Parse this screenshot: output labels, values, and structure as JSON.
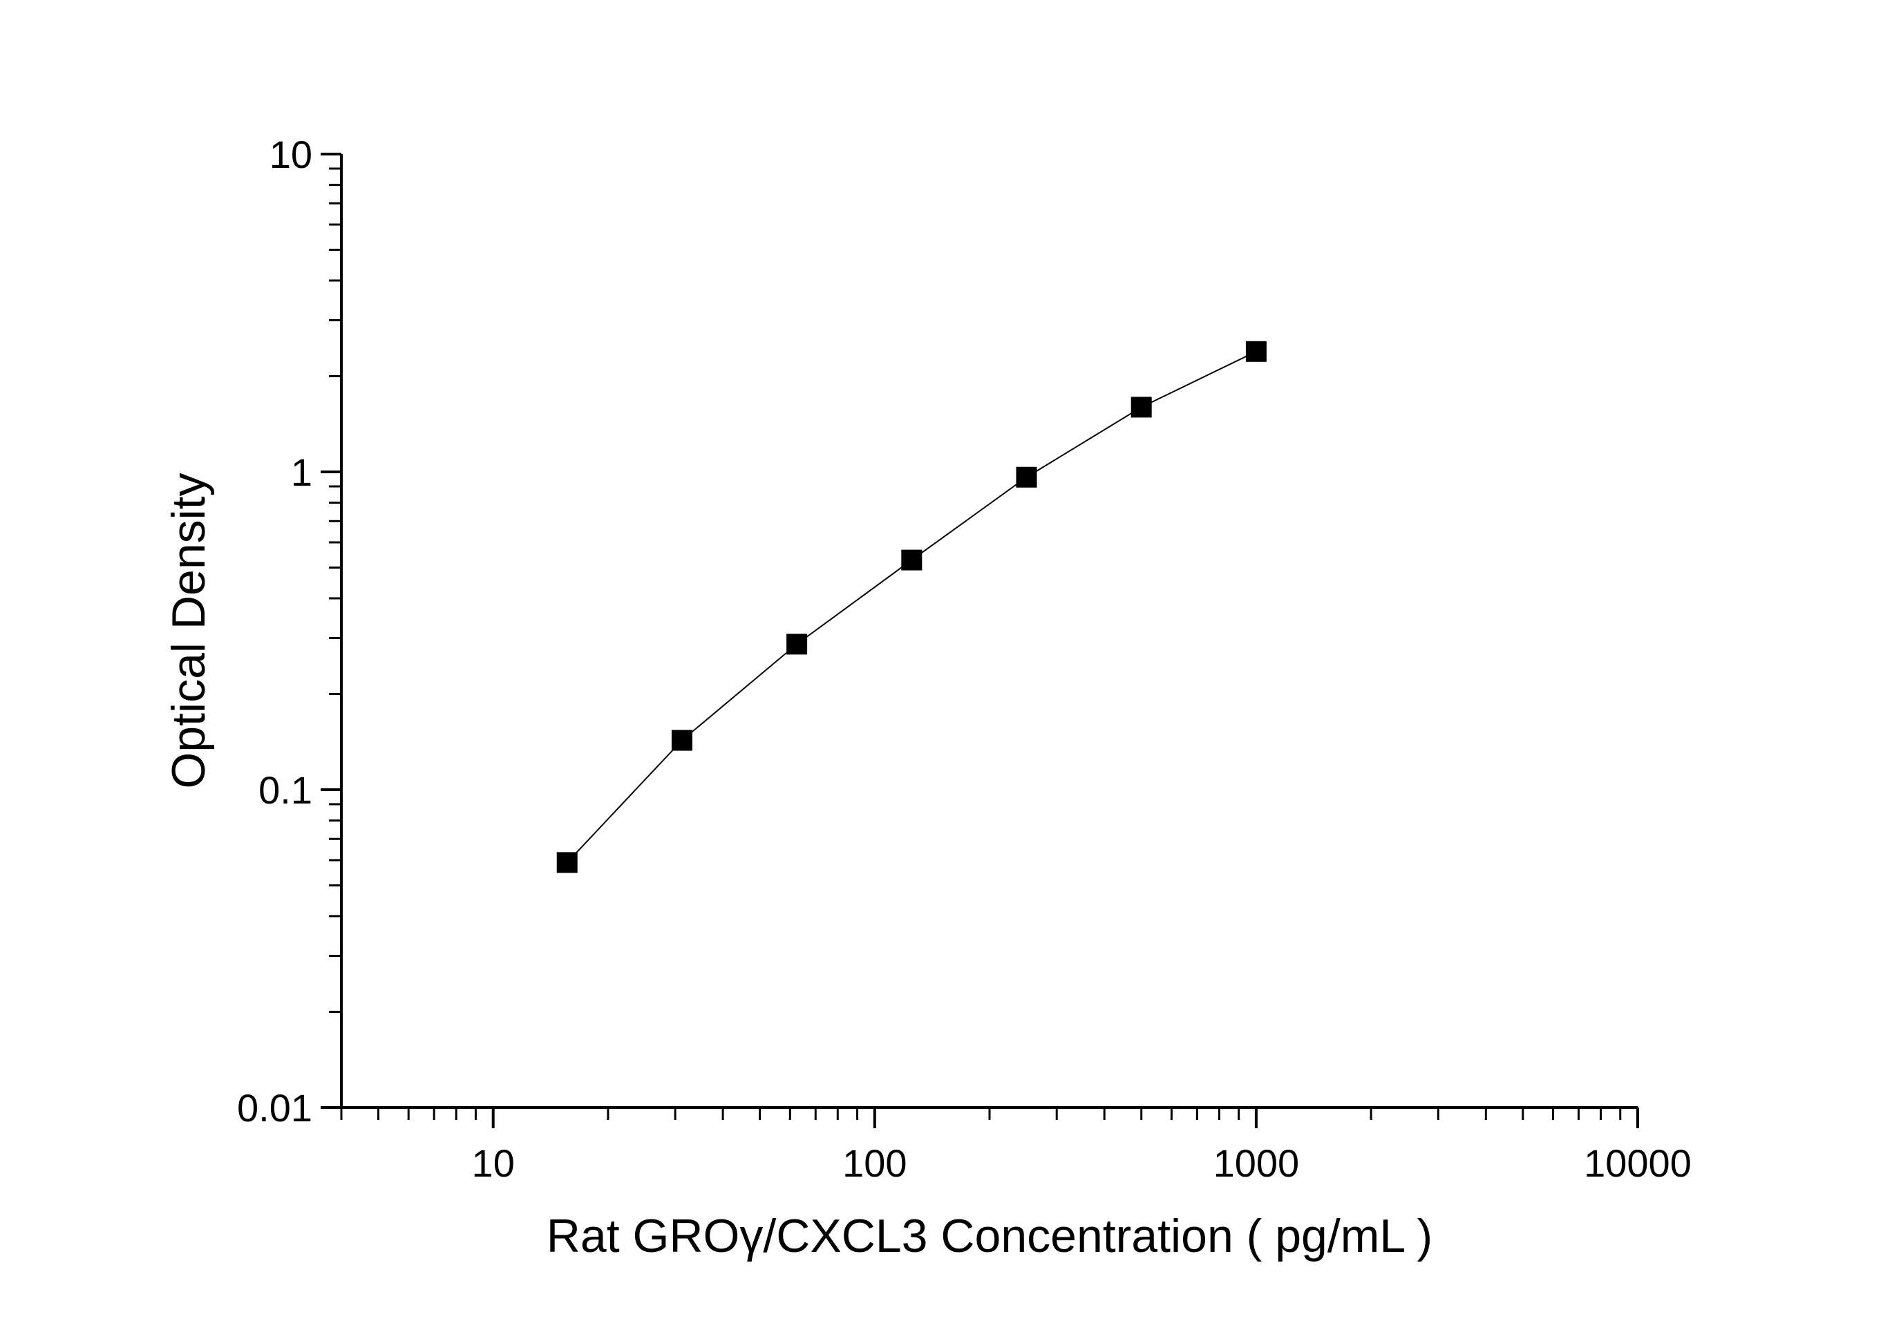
{
  "chart_data": {
    "type": "line",
    "title": "",
    "xlabel": "Rat GROγ/CXCL3 Concentration ( pg/mL )",
    "ylabel": "Optical Density",
    "xscale": "log",
    "yscale": "log",
    "xlim": [
      4,
      10000
    ],
    "ylim": [
      0.01,
      10
    ],
    "x_ticks": [
      10,
      100,
      1000,
      10000
    ],
    "x_tick_labels": [
      "10",
      "100",
      "1000",
      "10000"
    ],
    "y_ticks": [
      0.01,
      0.1,
      1,
      10
    ],
    "y_tick_labels": [
      "0.01",
      "0.1",
      "1",
      "10"
    ],
    "grid": false,
    "legend": "none",
    "marker": "square",
    "colors": {
      "series": "#000000",
      "axis": "#000000"
    },
    "series": [
      {
        "x": [
          15.625,
          31.25,
          62.5,
          125,
          250,
          500,
          1000
        ],
        "y": [
          0.059,
          0.143,
          0.287,
          0.528,
          0.962,
          1.598,
          2.392
        ]
      }
    ]
  }
}
